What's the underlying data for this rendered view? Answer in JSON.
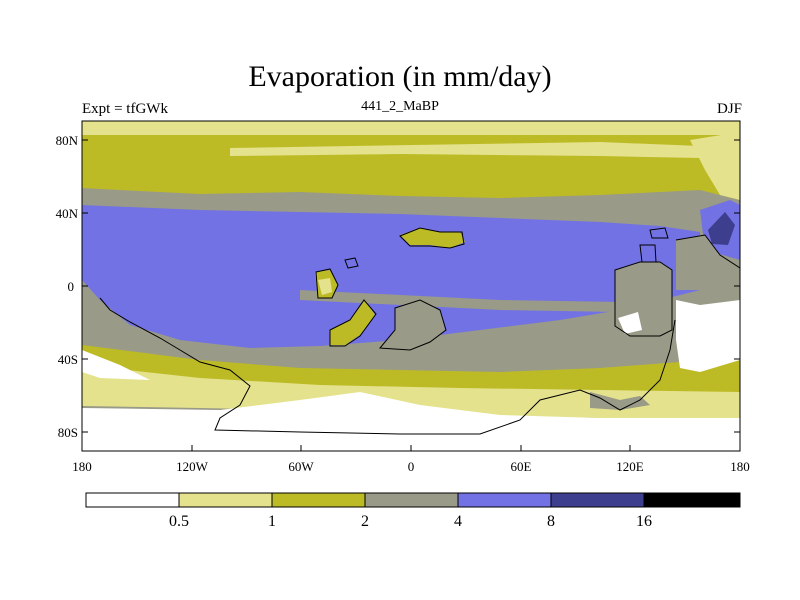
{
  "title": "Evaporation (in mm/day)",
  "left_label": "Expt = tfGWk",
  "center_label": "441_2_MaBP",
  "right_label": "DJF",
  "lat_ticks": [
    "80N",
    "40N",
    "0",
    "40S",
    "80S"
  ],
  "lon_ticks": [
    "180",
    "120W",
    "60W",
    "0",
    "60E",
    "120E",
    "180"
  ],
  "colorbar": {
    "levels": [
      "0.5",
      "1",
      "2",
      "4",
      "8",
      "16"
    ],
    "colors": [
      "#ffffff",
      "#e4e28c",
      "#bdbb25",
      "#9a9a88",
      "#7272e4",
      "#3e3e8e",
      "#000000"
    ]
  },
  "field_colors": {
    "c0": "#ffffff",
    "c1": "#e4e28c",
    "c2": "#bdbb25",
    "c3": "#9a9a88",
    "c4": "#7272e4",
    "c5": "#3e3e8e"
  }
}
